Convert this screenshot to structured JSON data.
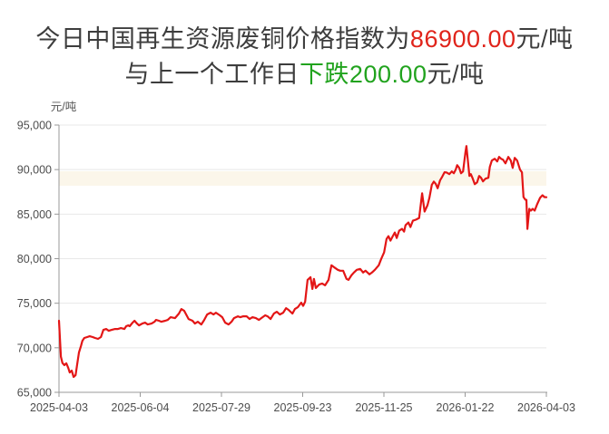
{
  "title": {
    "line1_prefix": "今日中国再生资源废铜价格指数为",
    "line1_value": "86900.00",
    "line1_suffix": "元/吨",
    "line2_prefix": "与上一个工作日",
    "line2_change": "下跌200.00",
    "line2_suffix": "元/吨",
    "text_color": "#3d3d3d",
    "value_color": "#e0241b",
    "change_color": "#21a31e"
  },
  "chart_data": {
    "type": "line",
    "series_name": "废铜价格指数",
    "ylabel": "元/吨",
    "ylim": [
      65000,
      95000
    ],
    "y_ticks": [
      65000,
      70000,
      75000,
      80000,
      85000,
      90000,
      95000
    ],
    "y_tick_labels": [
      "65,000",
      "70,000",
      "75,000",
      "80,000",
      "85,000",
      "90,000",
      "95,000"
    ],
    "x_tick_labels": [
      "2025-04-03",
      "2025-06-04",
      "2025-07-29",
      "2025-09-23",
      "2025-11-25",
      "2026-01-22",
      "2026-04-03"
    ],
    "grid": true,
    "legend": "none",
    "line_color": "#e31616",
    "axis_color": "#999999",
    "grid_color": "#e8e8e8",
    "tick_label_color": "#4d4d4d",
    "watermark_band_color": "#fbf6ea",
    "last_value": 86900,
    "change_from_previous": -200,
    "points": [
      [
        0.0,
        73030
      ],
      [
        0.004,
        69000
      ],
      [
        0.007,
        68300
      ],
      [
        0.011,
        68050
      ],
      [
        0.015,
        68250
      ],
      [
        0.019,
        67740
      ],
      [
        0.022,
        67230
      ],
      [
        0.026,
        67440
      ],
      [
        0.03,
        66730
      ],
      [
        0.034,
        66930
      ],
      [
        0.037,
        68050
      ],
      [
        0.041,
        69470
      ],
      [
        0.045,
        70200
      ],
      [
        0.048,
        70790
      ],
      [
        0.052,
        71100
      ],
      [
        0.058,
        71200
      ],
      [
        0.063,
        71300
      ],
      [
        0.069,
        71200
      ],
      [
        0.074,
        71100
      ],
      [
        0.08,
        71000
      ],
      [
        0.086,
        71200
      ],
      [
        0.091,
        72010
      ],
      [
        0.097,
        72110
      ],
      [
        0.102,
        71910
      ],
      [
        0.108,
        72010
      ],
      [
        0.115,
        72110
      ],
      [
        0.121,
        72110
      ],
      [
        0.127,
        72210
      ],
      [
        0.134,
        72110
      ],
      [
        0.138,
        72420
      ],
      [
        0.142,
        72520
      ],
      [
        0.145,
        72420
      ],
      [
        0.151,
        72820
      ],
      [
        0.155,
        73030
      ],
      [
        0.16,
        72720
      ],
      [
        0.164,
        72520
      ],
      [
        0.171,
        72720
      ],
      [
        0.177,
        72820
      ],
      [
        0.182,
        72620
      ],
      [
        0.19,
        72720
      ],
      [
        0.196,
        72920
      ],
      [
        0.199,
        73130
      ],
      [
        0.205,
        73030
      ],
      [
        0.21,
        72920
      ],
      [
        0.218,
        73030
      ],
      [
        0.223,
        73130
      ],
      [
        0.229,
        73430
      ],
      [
        0.238,
        73330
      ],
      [
        0.246,
        73840
      ],
      [
        0.251,
        74350
      ],
      [
        0.257,
        74140
      ],
      [
        0.263,
        73530
      ],
      [
        0.266,
        73230
      ],
      [
        0.274,
        73030
      ],
      [
        0.279,
        72720
      ],
      [
        0.285,
        72920
      ],
      [
        0.292,
        72620
      ],
      [
        0.298,
        73130
      ],
      [
        0.304,
        73740
      ],
      [
        0.311,
        73940
      ],
      [
        0.317,
        73740
      ],
      [
        0.322,
        73940
      ],
      [
        0.33,
        73640
      ],
      [
        0.335,
        73430
      ],
      [
        0.341,
        72820
      ],
      [
        0.348,
        72620
      ],
      [
        0.354,
        72920
      ],
      [
        0.359,
        73330
      ],
      [
        0.367,
        73530
      ],
      [
        0.372,
        73430
      ],
      [
        0.378,
        73530
      ],
      [
        0.385,
        73530
      ],
      [
        0.391,
        73230
      ],
      [
        0.397,
        73430
      ],
      [
        0.404,
        73330
      ],
      [
        0.41,
        73130
      ],
      [
        0.415,
        73330
      ],
      [
        0.423,
        73640
      ],
      [
        0.428,
        73530
      ],
      [
        0.434,
        73230
      ],
      [
        0.441,
        73840
      ],
      [
        0.447,
        74040
      ],
      [
        0.453,
        73740
      ],
      [
        0.46,
        73940
      ],
      [
        0.466,
        74450
      ],
      [
        0.471,
        74250
      ],
      [
        0.479,
        73840
      ],
      [
        0.484,
        74350
      ],
      [
        0.49,
        74550
      ],
      [
        0.497,
        75070
      ],
      [
        0.501,
        74700
      ],
      [
        0.505,
        75170
      ],
      [
        0.507,
        76190
      ],
      [
        0.51,
        77620
      ],
      [
        0.516,
        77930
      ],
      [
        0.52,
        76600
      ],
      [
        0.523,
        77730
      ],
      [
        0.527,
        76700
      ],
      [
        0.534,
        77110
      ],
      [
        0.54,
        77210
      ],
      [
        0.546,
        77010
      ],
      [
        0.553,
        77620
      ],
      [
        0.559,
        79260
      ],
      [
        0.564,
        79050
      ],
      [
        0.572,
        78750
      ],
      [
        0.577,
        78650
      ],
      [
        0.583,
        78650
      ],
      [
        0.59,
        77730
      ],
      [
        0.594,
        77620
      ],
      [
        0.6,
        78130
      ],
      [
        0.605,
        78440
      ],
      [
        0.611,
        78750
      ],
      [
        0.618,
        78850
      ],
      [
        0.624,
        78440
      ],
      [
        0.629,
        78650
      ],
      [
        0.637,
        78240
      ],
      [
        0.642,
        78440
      ],
      [
        0.648,
        78750
      ],
      [
        0.656,
        79260
      ],
      [
        0.661,
        79970
      ],
      [
        0.667,
        80700
      ],
      [
        0.672,
        82220
      ],
      [
        0.676,
        82530
      ],
      [
        0.68,
        82020
      ],
      [
        0.685,
        82530
      ],
      [
        0.689,
        82940
      ],
      [
        0.693,
        82320
      ],
      [
        0.698,
        83140
      ],
      [
        0.704,
        83350
      ],
      [
        0.708,
        83040
      ],
      [
        0.711,
        83750
      ],
      [
        0.717,
        84060
      ],
      [
        0.721,
        83550
      ],
      [
        0.726,
        84260
      ],
      [
        0.732,
        84370
      ],
      [
        0.739,
        84570
      ],
      [
        0.745,
        87330
      ],
      [
        0.75,
        85290
      ],
      [
        0.756,
        86000
      ],
      [
        0.76,
        86820
      ],
      [
        0.765,
        88300
      ],
      [
        0.769,
        88650
      ],
      [
        0.773,
        88400
      ],
      [
        0.777,
        87900
      ],
      [
        0.782,
        88800
      ],
      [
        0.786,
        89170
      ],
      [
        0.791,
        89700
      ],
      [
        0.795,
        89680
      ],
      [
        0.801,
        89490
      ],
      [
        0.806,
        89790
      ],
      [
        0.81,
        89590
      ],
      [
        0.814,
        90000
      ],
      [
        0.817,
        90500
      ],
      [
        0.821,
        90200
      ],
      [
        0.825,
        89590
      ],
      [
        0.829,
        89790
      ],
      [
        0.834,
        92000
      ],
      [
        0.836,
        92640
      ],
      [
        0.842,
        89280
      ],
      [
        0.845,
        89490
      ],
      [
        0.849,
        88980
      ],
      [
        0.853,
        88370
      ],
      [
        0.858,
        88570
      ],
      [
        0.862,
        89280
      ],
      [
        0.866,
        89080
      ],
      [
        0.87,
        88670
      ],
      [
        0.875,
        88980
      ],
      [
        0.881,
        89080
      ],
      [
        0.884,
        90300
      ],
      [
        0.888,
        91010
      ],
      [
        0.894,
        91220
      ],
      [
        0.899,
        90910
      ],
      [
        0.903,
        91420
      ],
      [
        0.907,
        91220
      ],
      [
        0.911,
        91120
      ],
      [
        0.916,
        90700
      ],
      [
        0.922,
        91420
      ],
      [
        0.927,
        91010
      ],
      [
        0.931,
        90190
      ],
      [
        0.935,
        91320
      ],
      [
        0.94,
        91010
      ],
      [
        0.946,
        89990
      ],
      [
        0.95,
        89680
      ],
      [
        0.953,
        86920
      ],
      [
        0.957,
        86610
      ],
      [
        0.959,
        86600
      ],
      [
        0.961,
        83340
      ],
      [
        0.965,
        85590
      ],
      [
        0.968,
        85390
      ],
      [
        0.972,
        85590
      ],
      [
        0.976,
        85390
      ],
      [
        0.981,
        86100
      ],
      [
        0.987,
        86820
      ],
      [
        0.992,
        87120
      ],
      [
        0.996,
        86920
      ],
      [
        1.0,
        86900
      ]
    ]
  }
}
